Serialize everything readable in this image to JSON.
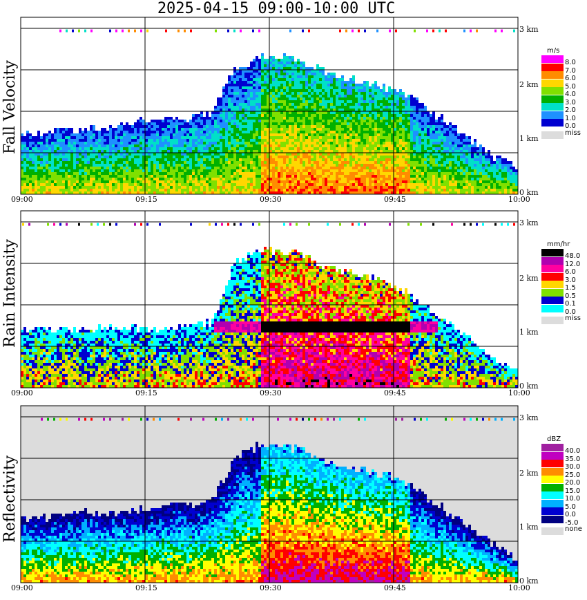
{
  "title": "2025-04-15   09:00-10:00 UTC",
  "time_ticks": [
    "09:00",
    "09:15",
    "09:30",
    "09:45",
    "10:00"
  ],
  "height_ticks": [
    "0 km",
    "1 km",
    "2 km",
    "3 km"
  ],
  "chart_data": [
    {
      "type": "heatmap",
      "name": "fall-velocity",
      "ylabel": "Fall Velocity",
      "unit": "m/s",
      "x_range": [
        "09:00",
        "10:00"
      ],
      "y_range_km": [
        0,
        3.2
      ],
      "legend": [
        {
          "label": "8.0",
          "color": "#ff00ff"
        },
        {
          "label": "7.0",
          "color": "#ff0000"
        },
        {
          "label": "6.0",
          "color": "#ff8c00"
        },
        {
          "label": "5.0",
          "color": "#ffd700"
        },
        {
          "label": "4.0",
          "color": "#80e000"
        },
        {
          "label": "3.0",
          "color": "#00b000"
        },
        {
          "label": "2.0",
          "color": "#00e0c8"
        },
        {
          "label": "1.0",
          "color": "#1e90ff"
        },
        {
          "label": "0.0",
          "color": "#0000d0"
        },
        {
          "label": "miss",
          "color": "#dcdcdc"
        }
      ],
      "echo_top_km": [
        1.1,
        1.15,
        1.2,
        1.2,
        1.3,
        1.35,
        1.35,
        1.4,
        1.5,
        2.3,
        2.5,
        2.5,
        2.4,
        2.2,
        2.1,
        2.0,
        1.9,
        1.6,
        1.3,
        1.0,
        0.7,
        0.5
      ],
      "background": "#ffffff"
    },
    {
      "type": "heatmap",
      "name": "rain-intensity",
      "ylabel": "Rain Intensity",
      "unit": "mm/hr",
      "x_range": [
        "09:00",
        "10:00"
      ],
      "y_range_km": [
        0,
        3.2
      ],
      "legend": [
        {
          "label": "48.0",
          "color": "#000000"
        },
        {
          "label": "12.0",
          "color": "#b000b0"
        },
        {
          "label": "6.0",
          "color": "#ff00a0"
        },
        {
          "label": "3.0",
          "color": "#ff0000"
        },
        {
          "label": "1.5",
          "color": "#ffd700"
        },
        {
          "label": "0.5",
          "color": "#80e000"
        },
        {
          "label": "0.1",
          "color": "#0000d0"
        },
        {
          "label": "0.0",
          "color": "#00ffff"
        },
        {
          "label": "miss",
          "color": "#dcdcdc"
        }
      ],
      "echo_top_km": [
        1.1,
        1.1,
        1.1,
        1.1,
        1.1,
        1.1,
        1.1,
        1.15,
        1.2,
        2.3,
        2.5,
        2.5,
        2.4,
        2.2,
        2.1,
        2.0,
        1.8,
        1.5,
        1.2,
        0.9,
        0.5,
        0.3
      ],
      "background": "#ffffff"
    },
    {
      "type": "heatmap",
      "name": "reflectivity",
      "ylabel": "Reflectivity",
      "unit": "dBZ",
      "x_range": [
        "09:00",
        "10:00"
      ],
      "y_range_km": [
        0,
        3.2
      ],
      "legend": [
        {
          "label": "40.0",
          "color": "#a020a0"
        },
        {
          "label": "35.0",
          "color": "#c000c0"
        },
        {
          "label": "30.0",
          "color": "#ff0000"
        },
        {
          "label": "25.0",
          "color": "#ff8c00"
        },
        {
          "label": "20.0",
          "color": "#ffff00"
        },
        {
          "label": "15.0",
          "color": "#00b000"
        },
        {
          "label": "10.0",
          "color": "#00ffff"
        },
        {
          "label": "5.0",
          "color": "#00b0ff"
        },
        {
          "label": "0.0",
          "color": "#0000d0"
        },
        {
          "label": "-5.0",
          "color": "#000080"
        },
        {
          "label": "none",
          "color": "#dcdcdc"
        }
      ],
      "echo_top_km": [
        1.2,
        1.2,
        1.25,
        1.3,
        1.3,
        1.35,
        1.4,
        1.45,
        1.5,
        2.3,
        2.5,
        2.5,
        2.4,
        2.2,
        2.1,
        2.0,
        1.9,
        1.6,
        1.3,
        1.0,
        0.7,
        0.4
      ],
      "background": "#dcdcdc"
    }
  ]
}
